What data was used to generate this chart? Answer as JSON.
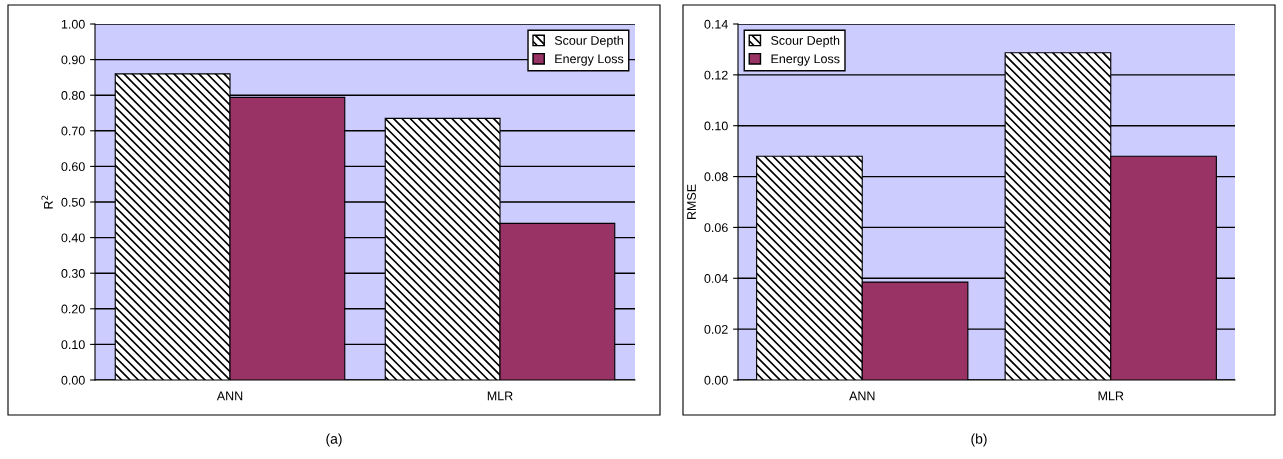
{
  "chart_data": [
    {
      "type": "bar",
      "categories": [
        "ANN",
        "MLR"
      ],
      "ylabel": "R$^{2}$",
      "annotations": [
        "(a)"
      ],
      "series": [
        {
          "name": "Scour Depth",
          "color": "#000000",
          "values": [
            0.86,
            0.735
          ]
        },
        {
          "name": "Energy Loss",
          "color": "#993366",
          "values": [
            0.794,
            0.44
          ]
        }
      ],
      "ylim": [
        0,
        1
      ],
      "yticks": [
        {
          "value": 0,
          "label": "0.00"
        },
        {
          "value": 0.1,
          "label": "0.10"
        },
        {
          "value": 0.2,
          "label": "0.20"
        },
        {
          "value": 0.3,
          "label": "0.30"
        },
        {
          "value": 0.4,
          "label": "0.40"
        },
        {
          "value": 0.5,
          "label": "0.50"
        },
        {
          "value": 0.6,
          "label": "0.60"
        },
        {
          "value": 0.7,
          "label": "0.70"
        },
        {
          "value": 0.8,
          "label": "0.80"
        },
        {
          "value": 0.9,
          "label": "0.90"
        },
        {
          "value": 1,
          "label": "1.00"
        }
      ],
      "grid": "y",
      "legend": "top right"
    },
    {
      "type": "bar",
      "categories": [
        "ANN",
        "MLR"
      ],
      "ylabel": "RMSE",
      "annotations": [
        "(b)"
      ],
      "series": [
        {
          "name": "Scour Depth",
          "color": "#000000",
          "values": [
            0.088,
            0.1287
          ]
        },
        {
          "name": "Energy Loss",
          "color": "#993366",
          "values": [
            0.0385,
            0.088
          ]
        }
      ],
      "ylim": [
        0,
        0.14
      ],
      "yticks": [
        {
          "value": 0,
          "label": "0.00"
        },
        {
          "value": 0.02,
          "label": "0.02"
        },
        {
          "value": 0.04,
          "label": "0.04"
        },
        {
          "value": 0.06,
          "label": "0.06"
        },
        {
          "value": 0.08,
          "label": "0.08"
        },
        {
          "value": 0.1,
          "label": "0.10"
        },
        {
          "value": 0.12,
          "label": "0.12"
        },
        {
          "value": 0.14,
          "label": "0.14"
        }
      ],
      "grid": "y",
      "legend": "top left"
    }
  ]
}
